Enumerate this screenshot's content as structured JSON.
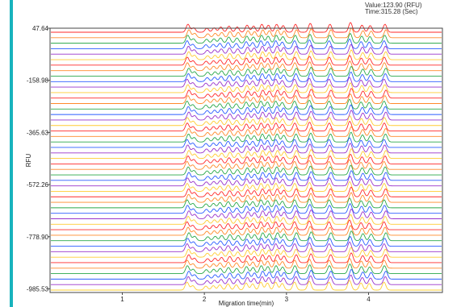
{
  "readout": {
    "value_text": "Value:123.90 (RFU)",
    "time_text": "Time:315.28 (Sec)"
  },
  "colors": {
    "accent": "#17b3bd",
    "trace_palette": [
      "#ff2a2a",
      "#ff8a2a",
      "#2aa84a",
      "#2a5cff",
      "#9933cc",
      "#ffcc33"
    ]
  },
  "chart_data": {
    "type": "line",
    "title": "",
    "xlabel": "Migration time(min)",
    "ylabel": "RFU",
    "x_tick_labels": [
      "1",
      "2",
      "3",
      "4"
    ],
    "x_ticks": [
      1,
      2,
      3,
      4
    ],
    "y_tick_labels": [
      "47.64",
      "-158.98",
      "-365.63",
      "-572.26",
      "-778.90",
      "-985.53"
    ],
    "y_ticks": [
      47.64,
      -158.98,
      -365.63,
      -572.26,
      -778.9,
      -985.53
    ],
    "xlim": [
      0.12,
      4.9
    ],
    "ylim": [
      -1000,
      47.64
    ],
    "grid": false,
    "legend": "none",
    "stacked_trace_count": 48,
    "peak_times_min": [
      1.8,
      1.87,
      2.03,
      2.12,
      2.2,
      2.3,
      2.4,
      2.52,
      2.6,
      2.7,
      2.78,
      2.88,
      2.96,
      3.11,
      3.29,
      3.53,
      3.78,
      3.92,
      4.02,
      4.2
    ],
    "peak_heights_rfu": [
      18,
      10,
      9,
      10,
      12,
      14,
      12,
      16,
      14,
      18,
      16,
      18,
      15,
      18,
      20,
      18,
      22,
      16,
      15,
      18
    ]
  }
}
